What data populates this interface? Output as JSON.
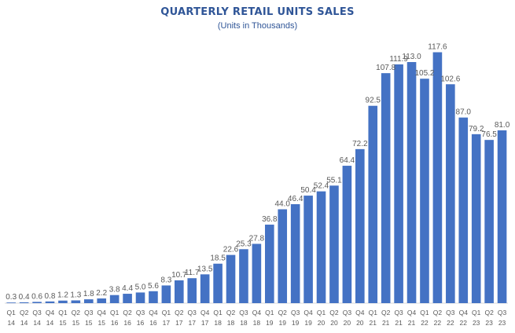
{
  "chart_data": {
    "type": "bar",
    "title": "QUARTERLY RETAIL UNITS SALES",
    "subtitle": "(Units in Thousands)",
    "xlabel": "",
    "ylabel": "",
    "ylim": [
      0,
      120
    ],
    "grid": false,
    "legend": "none",
    "bar_color": "#4472c4",
    "title_color": "#2f5597",
    "categories": [
      [
        "Q1",
        "14"
      ],
      [
        "Q2",
        "14"
      ],
      [
        "Q3",
        "14"
      ],
      [
        "Q4",
        "14"
      ],
      [
        "Q1",
        "15"
      ],
      [
        "Q2",
        "15"
      ],
      [
        "Q3",
        "15"
      ],
      [
        "Q4",
        "15"
      ],
      [
        "Q1",
        "16"
      ],
      [
        "Q2",
        "16"
      ],
      [
        "Q3",
        "16"
      ],
      [
        "Q4",
        "16"
      ],
      [
        "Q1",
        "17"
      ],
      [
        "Q2",
        "17"
      ],
      [
        "Q3",
        "17"
      ],
      [
        "Q4",
        "17"
      ],
      [
        "Q1",
        "18"
      ],
      [
        "Q2",
        "18"
      ],
      [
        "Q3",
        "18"
      ],
      [
        "Q4",
        "18"
      ],
      [
        "Q1",
        "19"
      ],
      [
        "Q2",
        "19"
      ],
      [
        "Q3",
        "19"
      ],
      [
        "Q4",
        "19"
      ],
      [
        "Q1",
        "20"
      ],
      [
        "Q2",
        "20"
      ],
      [
        "Q3",
        "20"
      ],
      [
        "Q4",
        "20"
      ],
      [
        "Q1",
        "21"
      ],
      [
        "Q2",
        "21"
      ],
      [
        "Q3",
        "21"
      ],
      [
        "Q4",
        "21"
      ],
      [
        "Q1",
        "22"
      ],
      [
        "Q2",
        "22"
      ],
      [
        "Q3",
        "22"
      ],
      [
        "Q4",
        "22"
      ],
      [
        "Q1",
        "23"
      ],
      [
        "Q2",
        "23"
      ],
      [
        "Q3",
        "23"
      ]
    ],
    "values": [
      0.3,
      0.4,
      0.6,
      0.8,
      1.2,
      1.3,
      1.8,
      2.2,
      3.8,
      4.4,
      5.0,
      5.6,
      8.3,
      10.7,
      11.7,
      13.5,
      18.5,
      22.6,
      25.3,
      27.8,
      36.8,
      44.0,
      46.4,
      50.4,
      52.4,
      55.1,
      64.4,
      72.2,
      92.5,
      107.8,
      111.9,
      113.0,
      105.2,
      117.6,
      102.6,
      87.0,
      79.2,
      76.5,
      81.0
    ],
    "labels": [
      "0.3",
      "0.4",
      "0.6",
      "0.8",
      "1.2",
      "1.3",
      "1.8",
      "2.2",
      "3.8",
      "4.4",
      "5.0",
      "5.6",
      "8.3",
      "10.7",
      "11.7",
      "13.5",
      "18.5",
      "22.6",
      "25.3",
      "27.8",
      "36.8",
      "44.0",
      "46.4",
      "50.4",
      "52.4",
      "55.1",
      "64.4",
      "72.2",
      "92.5",
      "107.8",
      "111.9",
      "113.0",
      "105.2",
      "117.6",
      "102.6",
      "87.0",
      "79.2",
      "76.5",
      "81.0"
    ]
  }
}
